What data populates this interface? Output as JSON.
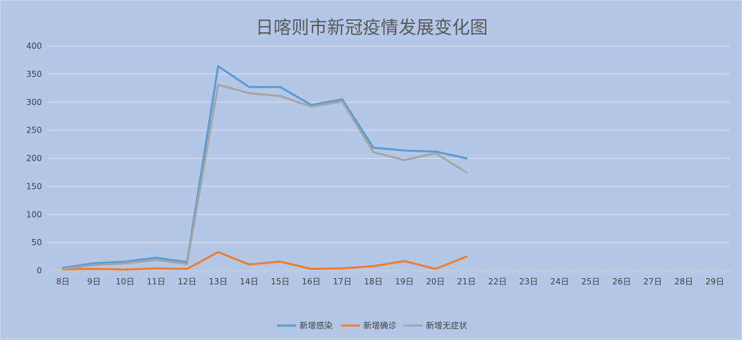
{
  "chart_data": {
    "type": "line",
    "title": "日喀则市新冠疫情发展变化图",
    "xlabel": "",
    "ylabel": "",
    "categories": [
      "8日",
      "9日",
      "10日",
      "11日",
      "12日",
      "13日",
      "14日",
      "15日",
      "16日",
      "17日",
      "18日",
      "19日",
      "20日",
      "21日",
      "22日",
      "23日",
      "24日",
      "25日",
      "26日",
      "27日",
      "28日",
      "29日"
    ],
    "ylim": [
      0,
      400
    ],
    "yticks": [
      0,
      50,
      100,
      150,
      200,
      250,
      300,
      350,
      400
    ],
    "grid": true,
    "legend_position": "bottom",
    "series": [
      {
        "name": "新增感染",
        "color": "#5b9bd5",
        "values": [
          5,
          13,
          16,
          23,
          15,
          364,
          327,
          327,
          295,
          305,
          219,
          214,
          212,
          200,
          null,
          null,
          null,
          null,
          null,
          null,
          null,
          null
        ]
      },
      {
        "name": "新增确诊",
        "color": "#ed7d31",
        "values": [
          2,
          3,
          2,
          4,
          3,
          33,
          11,
          16,
          3,
          4,
          8,
          17,
          3,
          25,
          null,
          null,
          null,
          null,
          null,
          null,
          null,
          null
        ]
      },
      {
        "name": "新增无症状",
        "color": "#a5a5a5",
        "values": [
          3,
          10,
          13,
          19,
          12,
          331,
          316,
          311,
          292,
          301,
          211,
          197,
          209,
          175,
          null,
          null,
          null,
          null,
          null,
          null,
          null,
          null
        ]
      }
    ]
  }
}
